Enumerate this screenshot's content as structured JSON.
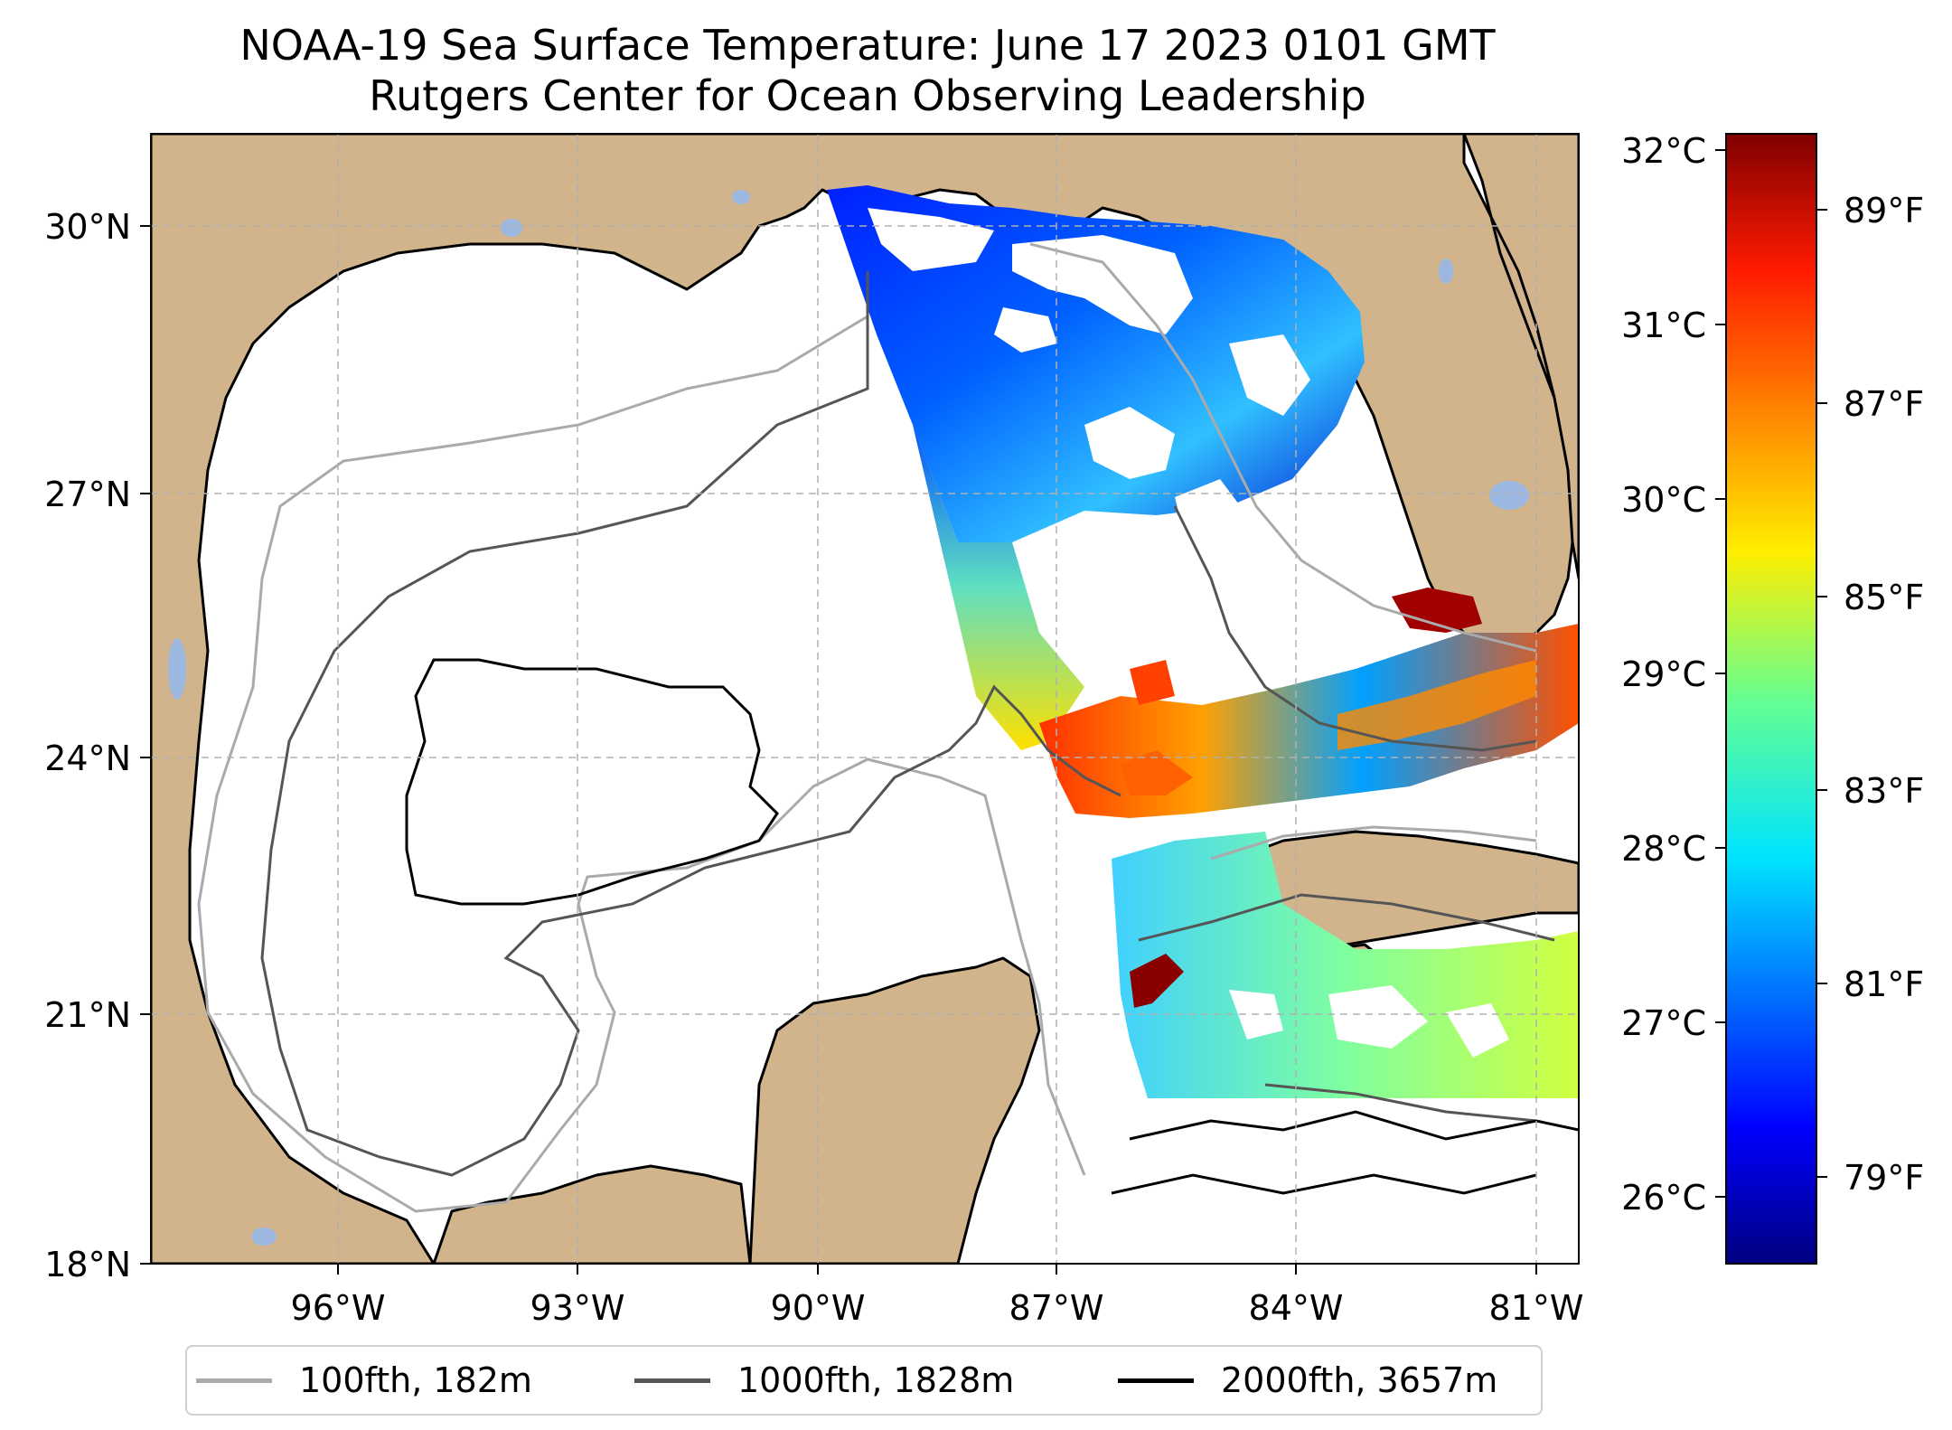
{
  "title": {
    "line1": "NOAA-19 Sea Surface Temperature: June 17 2023 0101 GMT",
    "line2": "Rutgers Center for Ocean Observing Leadership"
  },
  "map": {
    "lat_range": [
      18,
      31
    ],
    "lon_range": [
      -98.3,
      -80.6
    ],
    "lat_ticks": [
      {
        "value": 30,
        "label": "30°N"
      },
      {
        "value": 27,
        "label": "27°N"
      },
      {
        "value": 24,
        "label": "24°N"
      },
      {
        "value": 21,
        "label": "21°N"
      },
      {
        "value": 18,
        "label": "18°N"
      }
    ],
    "lon_ticks": [
      {
        "value": -96,
        "label": "96°W"
      },
      {
        "value": -93,
        "label": "93°W"
      },
      {
        "value": -90,
        "label": "90°W"
      },
      {
        "value": -87,
        "label": "87°W"
      },
      {
        "value": -84,
        "label": "84°W"
      },
      {
        "value": -81,
        "label": "81°W"
      }
    ],
    "gridlines": true,
    "land_color": "#d2b48c",
    "lake_color": "#9db8e0"
  },
  "colorbar": {
    "colormap": "jet",
    "celsius_ticks": [
      "32°C",
      "31°C",
      "30°C",
      "29°C",
      "28°C",
      "27°C",
      "26°C"
    ],
    "fahrenheit_ticks": [
      "89°F",
      "87°F",
      "85°F",
      "83°F",
      "81°F",
      "79°F"
    ]
  },
  "legend": {
    "items": [
      {
        "label": "100fth, 182m",
        "color": "#aaaaaa"
      },
      {
        "label": "1000fth, 1828m",
        "color": "#555555"
      },
      {
        "label": "2000fth, 3657m",
        "color": "#000000"
      }
    ]
  }
}
